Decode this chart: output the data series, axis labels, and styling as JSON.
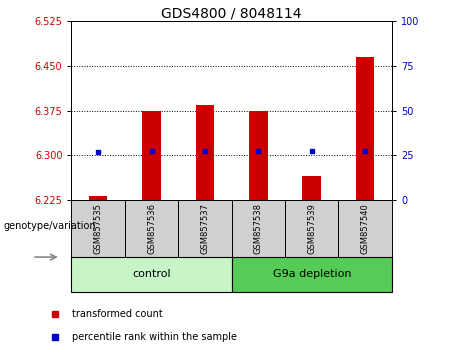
{
  "title": "GDS4800 / 8048114",
  "samples": [
    "GSM857535",
    "GSM857536",
    "GSM857537",
    "GSM857538",
    "GSM857539",
    "GSM857540"
  ],
  "group_labels": [
    "control",
    "G9a depletion"
  ],
  "bar_bottom": 6.225,
  "red_values": [
    6.232,
    6.375,
    6.385,
    6.375,
    6.265,
    6.465
  ],
  "blue_values": [
    6.305,
    6.308,
    6.308,
    6.308,
    6.308,
    6.308
  ],
  "blue_value_gsm539": 6.308,
  "ylim_left": [
    6.225,
    6.525
  ],
  "ylim_right": [
    0,
    100
  ],
  "yticks_left": [
    6.225,
    6.3,
    6.375,
    6.45,
    6.525
  ],
  "yticks_right": [
    0,
    25,
    50,
    75,
    100
  ],
  "hlines": [
    6.3,
    6.375,
    6.45
  ],
  "bar_color": "#CC0000",
  "dot_color": "#0000CC",
  "left_tick_color": "#CC0000",
  "right_tick_color": "#0000CC",
  "bar_width": 0.35,
  "xlabel": "genotype/variation",
  "legend_items": [
    "transformed count",
    "percentile rank within the sample"
  ],
  "legend_colors": [
    "#CC0000",
    "#0000CC"
  ],
  "group_box_color_control": "#c8f5c8",
  "group_box_color_g9a": "#55cc55",
  "sample_box_color": "#d0d0d0",
  "title_fontsize": 10,
  "tick_fontsize": 7,
  "sample_fontsize": 6,
  "group_fontsize": 8,
  "legend_fontsize": 7
}
